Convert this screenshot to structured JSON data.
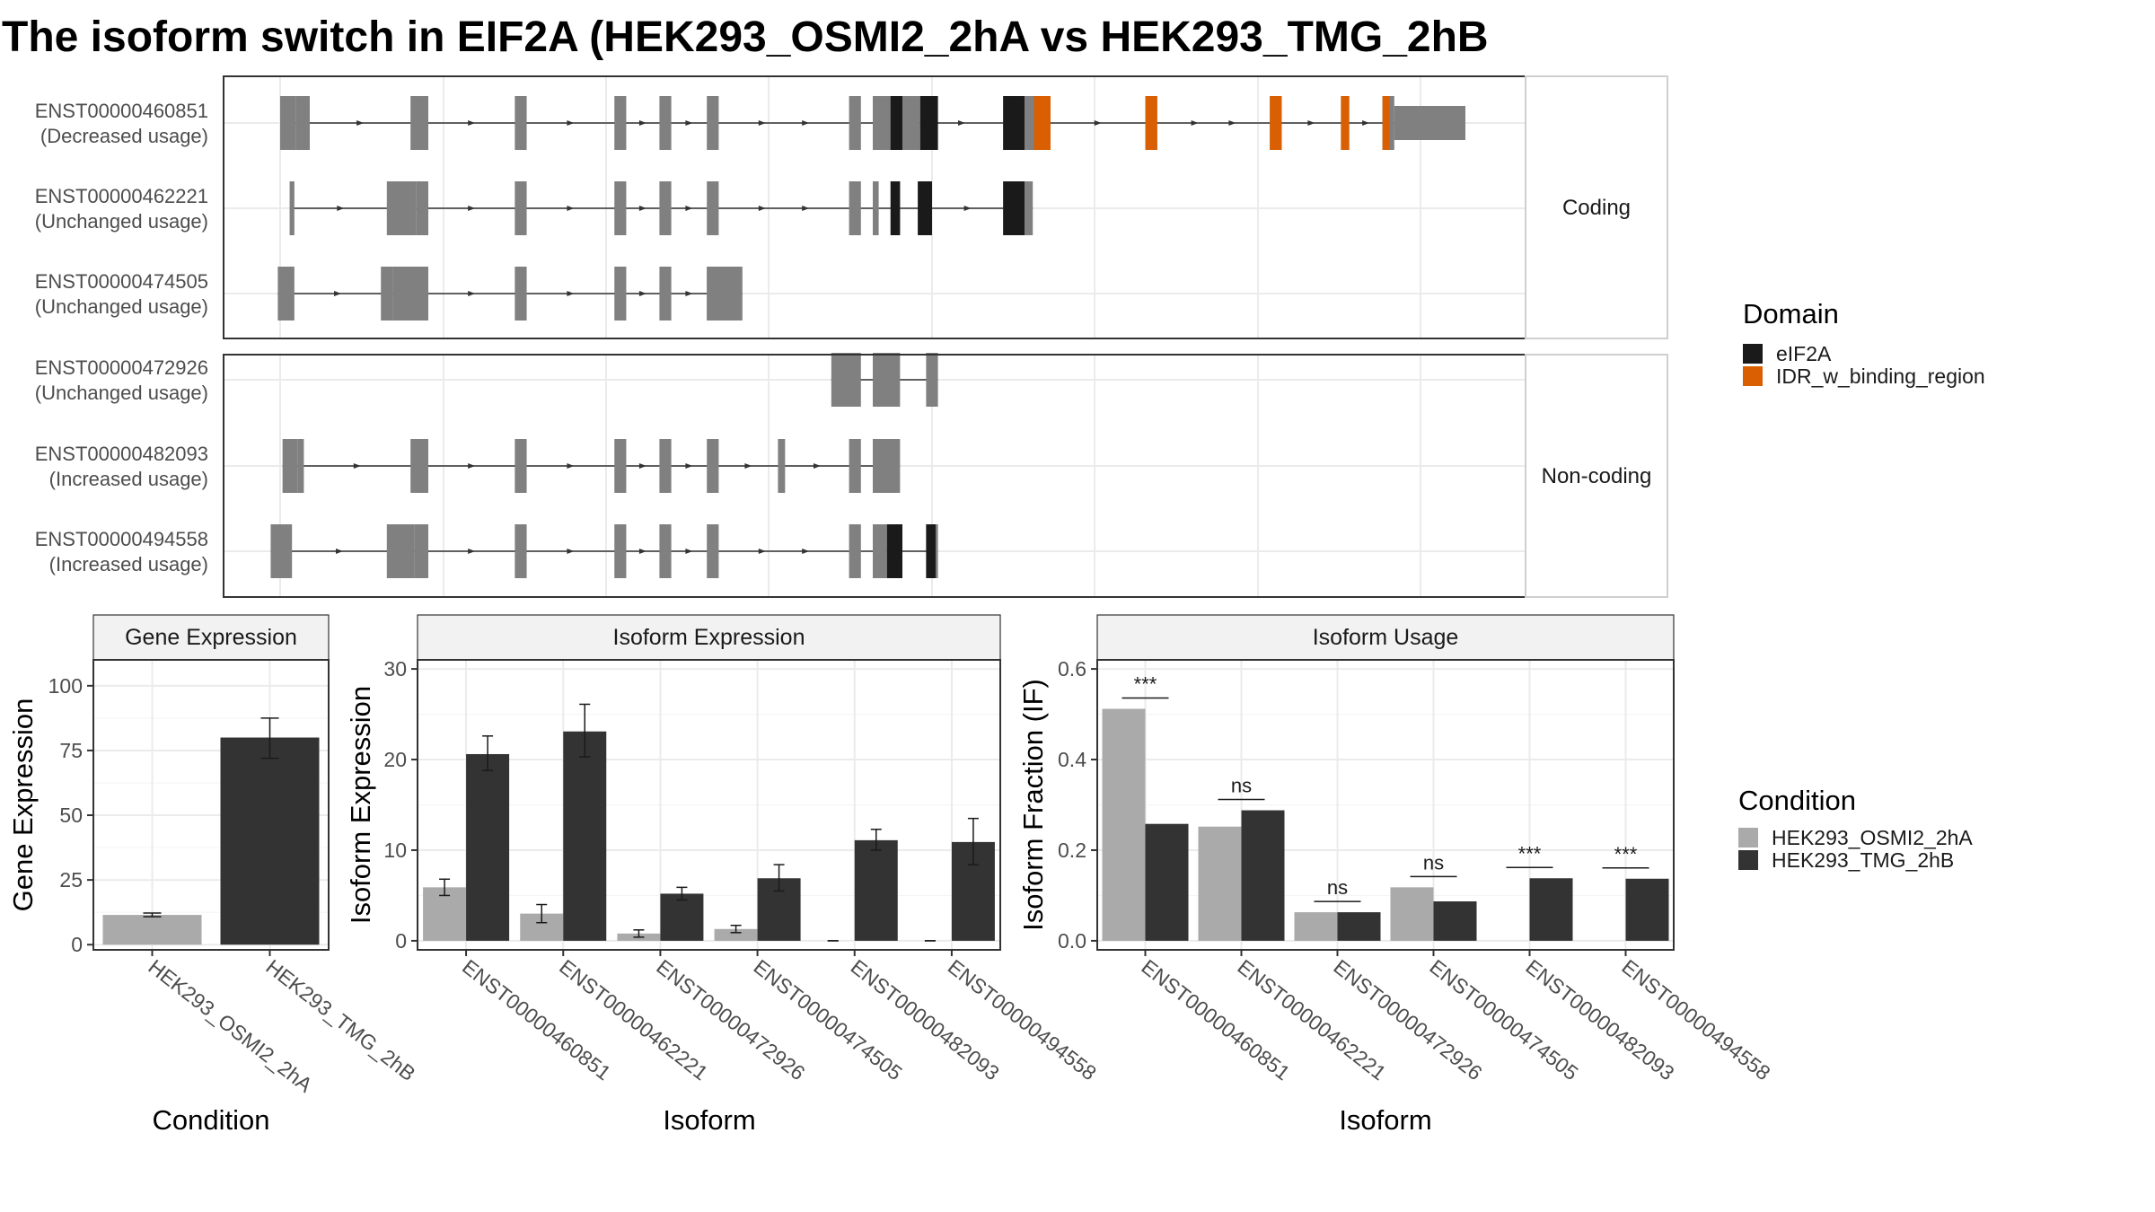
{
  "title": "The isoform switch in EIF2A (HEK293_OSMI2_2hA vs HEK293_TMG_2hB",
  "colors": {
    "exon": "#808080",
    "cond_a": "#aaaaaa",
    "cond_b": "#333333",
    "strip_bg": "#f2f2f2",
    "grid": "#ebebeb",
    "eIF2A": "#1a1a1a",
    "IDR_w_binding_region": "#d95f02"
  },
  "structure": {
    "legend_title": "Domain",
    "legend": [
      {
        "name": "eIF2A",
        "color": "#1a1a1a"
      },
      {
        "name": "IDR_w_binding_region",
        "color": "#d95f02"
      }
    ],
    "panels": [
      {
        "label": "Coding",
        "transcripts": [
          {
            "id": "ENST00000460851",
            "usage": "(Decreased usage)",
            "start": 0.0,
            "end": 100.0,
            "exons": [
              [
                0.0,
                1.3
              ],
              [
                1.3,
                2.5
              ],
              [
                11.0,
                12.5
              ],
              [
                19.8,
                20.8
              ],
              [
                28.2,
                29.2
              ],
              [
                32.0,
                33.0
              ],
              [
                36.0,
                37.0
              ],
              [
                48.0,
                49.0
              ],
              [
                50.0,
                52.0
              ],
              [
                52.5,
                54.0
              ],
              [
                61.0,
                64.0
              ],
              [
                64.0,
                65.0
              ],
              [
                73.0,
                74.0
              ],
              [
                83.5,
                84.5
              ],
              [
                89.5,
                90.2
              ],
              [
                93.0,
                94.0
              ],
              [
                94.0,
                100.0
              ]
            ],
            "domains": [
              {
                "name": "eIF2A",
                "range": [
                  51.5,
                  52.5
                ]
              },
              {
                "name": "eIF2A",
                "range": [
                  54.0,
                  55.5
                ]
              },
              {
                "name": "eIF2A",
                "range": [
                  61.0,
                  62.8
                ]
              },
              {
                "name": "IDR_w_binding_region",
                "range": [
                  63.6,
                  65.0
                ]
              },
              {
                "name": "IDR_w_binding_region",
                "range": [
                  73.0,
                  74.0
                ]
              },
              {
                "name": "IDR_w_binding_region",
                "range": [
                  83.5,
                  84.5
                ]
              },
              {
                "name": "IDR_w_binding_region",
                "range": [
                  89.5,
                  90.2
                ]
              },
              {
                "name": "IDR_w_binding_region",
                "range": [
                  93.0,
                  93.6
                ]
              }
            ]
          },
          {
            "id": "ENST00000462221",
            "usage": "(Unchanged usage)",
            "start": 0.8,
            "end": 63.5,
            "exons": [
              [
                0.8,
                1.2
              ],
              [
                9.0,
                11.5
              ],
              [
                11.5,
                12.5
              ],
              [
                19.8,
                20.8
              ],
              [
                28.2,
                29.2
              ],
              [
                32.0,
                33.0
              ],
              [
                36.0,
                37.0
              ],
              [
                48.0,
                49.0
              ],
              [
                50.0,
                50.5
              ],
              [
                51.5,
                52.3
              ],
              [
                53.8,
                55.0
              ],
              [
                61.0,
                63.5
              ]
            ],
            "domains": [
              {
                "name": "eIF2A",
                "range": [
                  51.5,
                  52.3
                ]
              },
              {
                "name": "eIF2A",
                "range": [
                  53.8,
                  55.0
                ]
              },
              {
                "name": "eIF2A",
                "range": [
                  61.0,
                  62.8
                ]
              }
            ]
          },
          {
            "id": "ENST00000474505",
            "usage": "(Unchanged usage)",
            "start": -0.2,
            "end": 39.0,
            "exons": [
              [
                -0.2,
                1.2
              ],
              [
                8.5,
                9.5
              ],
              [
                9.5,
                12.5
              ],
              [
                19.8,
                20.8
              ],
              [
                28.2,
                29.2
              ],
              [
                32.0,
                33.0
              ],
              [
                36.0,
                37.0
              ],
              [
                36.0,
                39.0
              ]
            ],
            "domains": []
          }
        ]
      },
      {
        "label": "Non-coding",
        "transcripts": [
          {
            "id": "ENST00000472926",
            "usage": "(Unchanged usage)",
            "start": 46.5,
            "end": 55.5,
            "exons": [
              [
                46.5,
                49.0
              ],
              [
                50.0,
                52.3
              ],
              [
                54.5,
                55.5
              ]
            ],
            "domains": []
          },
          {
            "id": "ENST00000482093",
            "usage": "(Increased usage)",
            "start": 0.2,
            "end": 52.3,
            "exons": [
              [
                0.2,
                1.5
              ],
              [
                1.5,
                2.0
              ],
              [
                11.0,
                12.5
              ],
              [
                19.8,
                20.8
              ],
              [
                28.2,
                29.2
              ],
              [
                32.0,
                33.0
              ],
              [
                36.0,
                37.0
              ],
              [
                42.0,
                42.6
              ],
              [
                48.0,
                49.0
              ],
              [
                50.0,
                52.3
              ]
            ],
            "domains": []
          },
          {
            "id": "ENST00000494558",
            "usage": "(Increased usage)",
            "start": -0.8,
            "end": 55.5,
            "exons": [
              [
                -0.8,
                1.0
              ],
              [
                9.0,
                11.3
              ],
              [
                11.3,
                12.5
              ],
              [
                19.8,
                20.8
              ],
              [
                28.2,
                29.2
              ],
              [
                32.0,
                33.0
              ],
              [
                36.0,
                37.0
              ],
              [
                48.0,
                49.0
              ],
              [
                50.0,
                51.2
              ],
              [
                51.2,
                52.5
              ],
              [
                54.5,
                55.5
              ]
            ],
            "domains": [
              {
                "name": "eIF2A",
                "range": [
                  51.2,
                  52.5
                ]
              },
              {
                "name": "eIF2A",
                "range": [
                  54.5,
                  55.3
                ]
              }
            ]
          }
        ]
      }
    ]
  },
  "chart_data": [
    {
      "type": "bar",
      "title": "Gene Expression",
      "xlabel": "Condition",
      "ylabel": "Gene Expression",
      "categories": [
        "HEK293_OSMI2_2hA",
        "HEK293_TMG_2hB"
      ],
      "values": [
        11.5,
        80.0
      ],
      "errors": [
        [
          10.8,
          12.2
        ],
        [
          72.0,
          87.5
        ]
      ],
      "ylim": [
        -2,
        110
      ],
      "yticks": [
        0,
        25,
        50,
        75,
        100
      ],
      "grid": true
    },
    {
      "type": "bar",
      "title": "Isoform Expression",
      "xlabel": "Isoform",
      "ylabel": "Isoform Expression",
      "categories": [
        "ENST00000460851",
        "ENST00000462221",
        "ENST00000472926",
        "ENST00000474505",
        "ENST00000482093",
        "ENST00000494558"
      ],
      "series": [
        {
          "name": "HEK293_OSMI2_2hA",
          "values": [
            5.9,
            3.0,
            0.8,
            1.3,
            0.0,
            0.0
          ],
          "errors": [
            [
              5.0,
              6.8
            ],
            [
              2.0,
              4.0
            ],
            [
              0.4,
              1.2
            ],
            [
              0.9,
              1.7
            ],
            [
              0.0,
              0.0
            ],
            [
              0.0,
              0.0
            ]
          ]
        },
        {
          "name": "HEK293_TMG_2hB",
          "values": [
            20.6,
            23.1,
            5.2,
            6.9,
            11.1,
            10.9
          ],
          "errors": [
            [
              18.8,
              22.6
            ],
            [
              20.3,
              26.1
            ],
            [
              4.5,
              5.9
            ],
            [
              5.5,
              8.4
            ],
            [
              10.0,
              12.3
            ],
            [
              8.4,
              13.5
            ]
          ]
        }
      ],
      "ylim": [
        -1,
        31
      ],
      "yticks": [
        0,
        10,
        20,
        30
      ],
      "grid": true
    },
    {
      "type": "bar",
      "title": "Isoform Usage",
      "xlabel": "Isoform",
      "ylabel": "Isoform Fraction (IF)",
      "categories": [
        "ENST00000460851",
        "ENST00000462221",
        "ENST00000472926",
        "ENST00000474505",
        "ENST00000482093",
        "ENST00000494558"
      ],
      "series": [
        {
          "name": "HEK293_OSMI2_2hA",
          "values": [
            0.512,
            0.252,
            0.063,
            0.118,
            0.0,
            0.0
          ]
        },
        {
          "name": "HEK293_TMG_2hB",
          "values": [
            0.258,
            0.288,
            0.063,
            0.087,
            0.138,
            0.137
          ]
        }
      ],
      "significance": [
        "***",
        "ns",
        "ns",
        "ns",
        "***",
        "***"
      ],
      "ylim": [
        -0.02,
        0.62
      ],
      "yticks": [
        0.0,
        0.2,
        0.4,
        0.6
      ],
      "ytick_labels": [
        "0.0",
        "0.2",
        "0.4",
        "0.6"
      ],
      "grid": true
    }
  ],
  "condition_legend": {
    "title": "Condition",
    "items": [
      {
        "name": "HEK293_OSMI2_2hA",
        "color": "#aaaaaa"
      },
      {
        "name": "HEK293_TMG_2hB",
        "color": "#333333"
      }
    ]
  }
}
